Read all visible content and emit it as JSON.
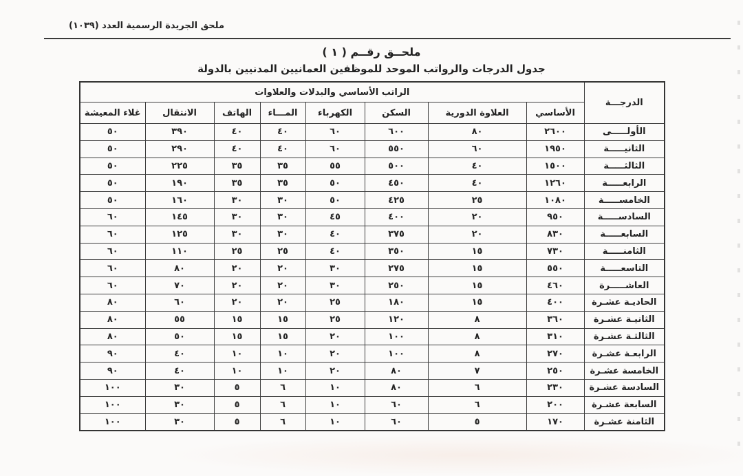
{
  "header": {
    "gazette_note": "ملحق الجريدة الرسمية العدد (١٠٣٩)",
    "annex_title": "ملحــق رقــم ( ١ )",
    "table_title": "جدول الدرجات والرواتب الموحد للموظفين العمانيين المدنيين بالدولة"
  },
  "table": {
    "grade_header": "الدرجـــة",
    "group_header": "الراتب الأساسي والبدلات والعلاوات",
    "columns": [
      "الأساسي",
      "العلاوة الدورية",
      "السكن",
      "الكهرباء",
      "المـــاء",
      "الهاتف",
      "الانتقال",
      "غلاء المعيشة"
    ],
    "rows": [
      {
        "grade": "الأولـــــى",
        "values": [
          "٢٦٠٠",
          "٨٠",
          "٦٠٠",
          "٦٠",
          "٤٠",
          "٤٠",
          "٣٩٠",
          "٥٠"
        ]
      },
      {
        "grade": "الثانيـــــة",
        "values": [
          "١٩٥٠",
          "٦٠",
          "٥٥٠",
          "٦٠",
          "٤٠",
          "٤٠",
          "٢٩٠",
          "٥٠"
        ]
      },
      {
        "grade": "الثالثـــــة",
        "values": [
          "١٥٠٠",
          "٤٠",
          "٥٠٠",
          "٥٥",
          "٣٥",
          "٣٥",
          "٢٢٥",
          "٥٠"
        ]
      },
      {
        "grade": "الرابعـــــة",
        "values": [
          "١٢٦٠",
          "٤٠",
          "٤٥٠",
          "٥٠",
          "٣٥",
          "٣٥",
          "١٩٠",
          "٥٠"
        ]
      },
      {
        "grade": "الخامســـــة",
        "values": [
          "١٠٨٠",
          "٢٥",
          "٤٢٥",
          "٥٠",
          "٣٠",
          "٣٠",
          "١٦٠",
          "٥٠"
        ]
      },
      {
        "grade": "السادســـــة",
        "values": [
          "٩٥٠",
          "٢٠",
          "٤٠٠",
          "٤٥",
          "٣٠",
          "٣٠",
          "١٤٥",
          "٦٠"
        ]
      },
      {
        "grade": "السابعـــــة",
        "values": [
          "٨٣٠",
          "٢٠",
          "٣٧٥",
          "٤٠",
          "٣٠",
          "٣٠",
          "١٢٥",
          "٦٠"
        ]
      },
      {
        "grade": "الثامنـــــة",
        "values": [
          "٧٣٠",
          "١٥",
          "٣٥٠",
          "٤٠",
          "٢٥",
          "٢٥",
          "١١٠",
          "٦٠"
        ]
      },
      {
        "grade": "التاسعـــــة",
        "values": [
          "٥٥٠",
          "١٥",
          "٢٧٥",
          "٣٠",
          "٢٠",
          "٢٠",
          "٨٠",
          "٦٠"
        ]
      },
      {
        "grade": "العاشـــــرة",
        "values": [
          "٤٦٠",
          "١٥",
          "٢٥٠",
          "٣٠",
          "٢٠",
          "٢٠",
          "٧٠",
          "٦٠"
        ]
      },
      {
        "grade": "الحاديـة عشـرة",
        "values": [
          "٤٠٠",
          "١٥",
          "١٨٠",
          "٢٥",
          "٢٠",
          "٢٠",
          "٦٠",
          "٨٠"
        ]
      },
      {
        "grade": "الثانيـة عشـرة",
        "values": [
          "٣٦٠",
          "٨",
          "١٢٠",
          "٢٥",
          "١٥",
          "١٥",
          "٥٥",
          "٨٠"
        ]
      },
      {
        "grade": "الثالثـة عشـرة",
        "values": [
          "٣١٠",
          "٨",
          "١٠٠",
          "٢٠",
          "١٥",
          "١٥",
          "٥٠",
          "٨٠"
        ]
      },
      {
        "grade": "الرابعـة عشـرة",
        "values": [
          "٢٧٠",
          "٨",
          "١٠٠",
          "٢٠",
          "١٠",
          "١٠",
          "٤٠",
          "٩٠"
        ]
      },
      {
        "grade": "الخامسة عشـرة",
        "values": [
          "٢٥٠",
          "٧",
          "٨٠",
          "٢٠",
          "١٠",
          "١٠",
          "٤٠",
          "٩٠"
        ]
      },
      {
        "grade": "السادسة عشـرة",
        "values": [
          "٢٣٠",
          "٦",
          "٨٠",
          "١٠",
          "٦",
          "٥",
          "٣٠",
          "١٠٠"
        ]
      },
      {
        "grade": "السابعة عشـرة",
        "values": [
          "٢٠٠",
          "٦",
          "٦٠",
          "١٠",
          "٦",
          "٥",
          "٣٠",
          "١٠٠"
        ]
      },
      {
        "grade": "الثامنة عشـرة",
        "values": [
          "١٧٠",
          "٥",
          "٦٠",
          "١٠",
          "٦",
          "٥",
          "٣٠",
          "١٠٠"
        ]
      }
    ]
  },
  "colors": {
    "page_background": "#fbfaf9",
    "table_border": "#3c3c3c",
    "text": "#242424"
  }
}
